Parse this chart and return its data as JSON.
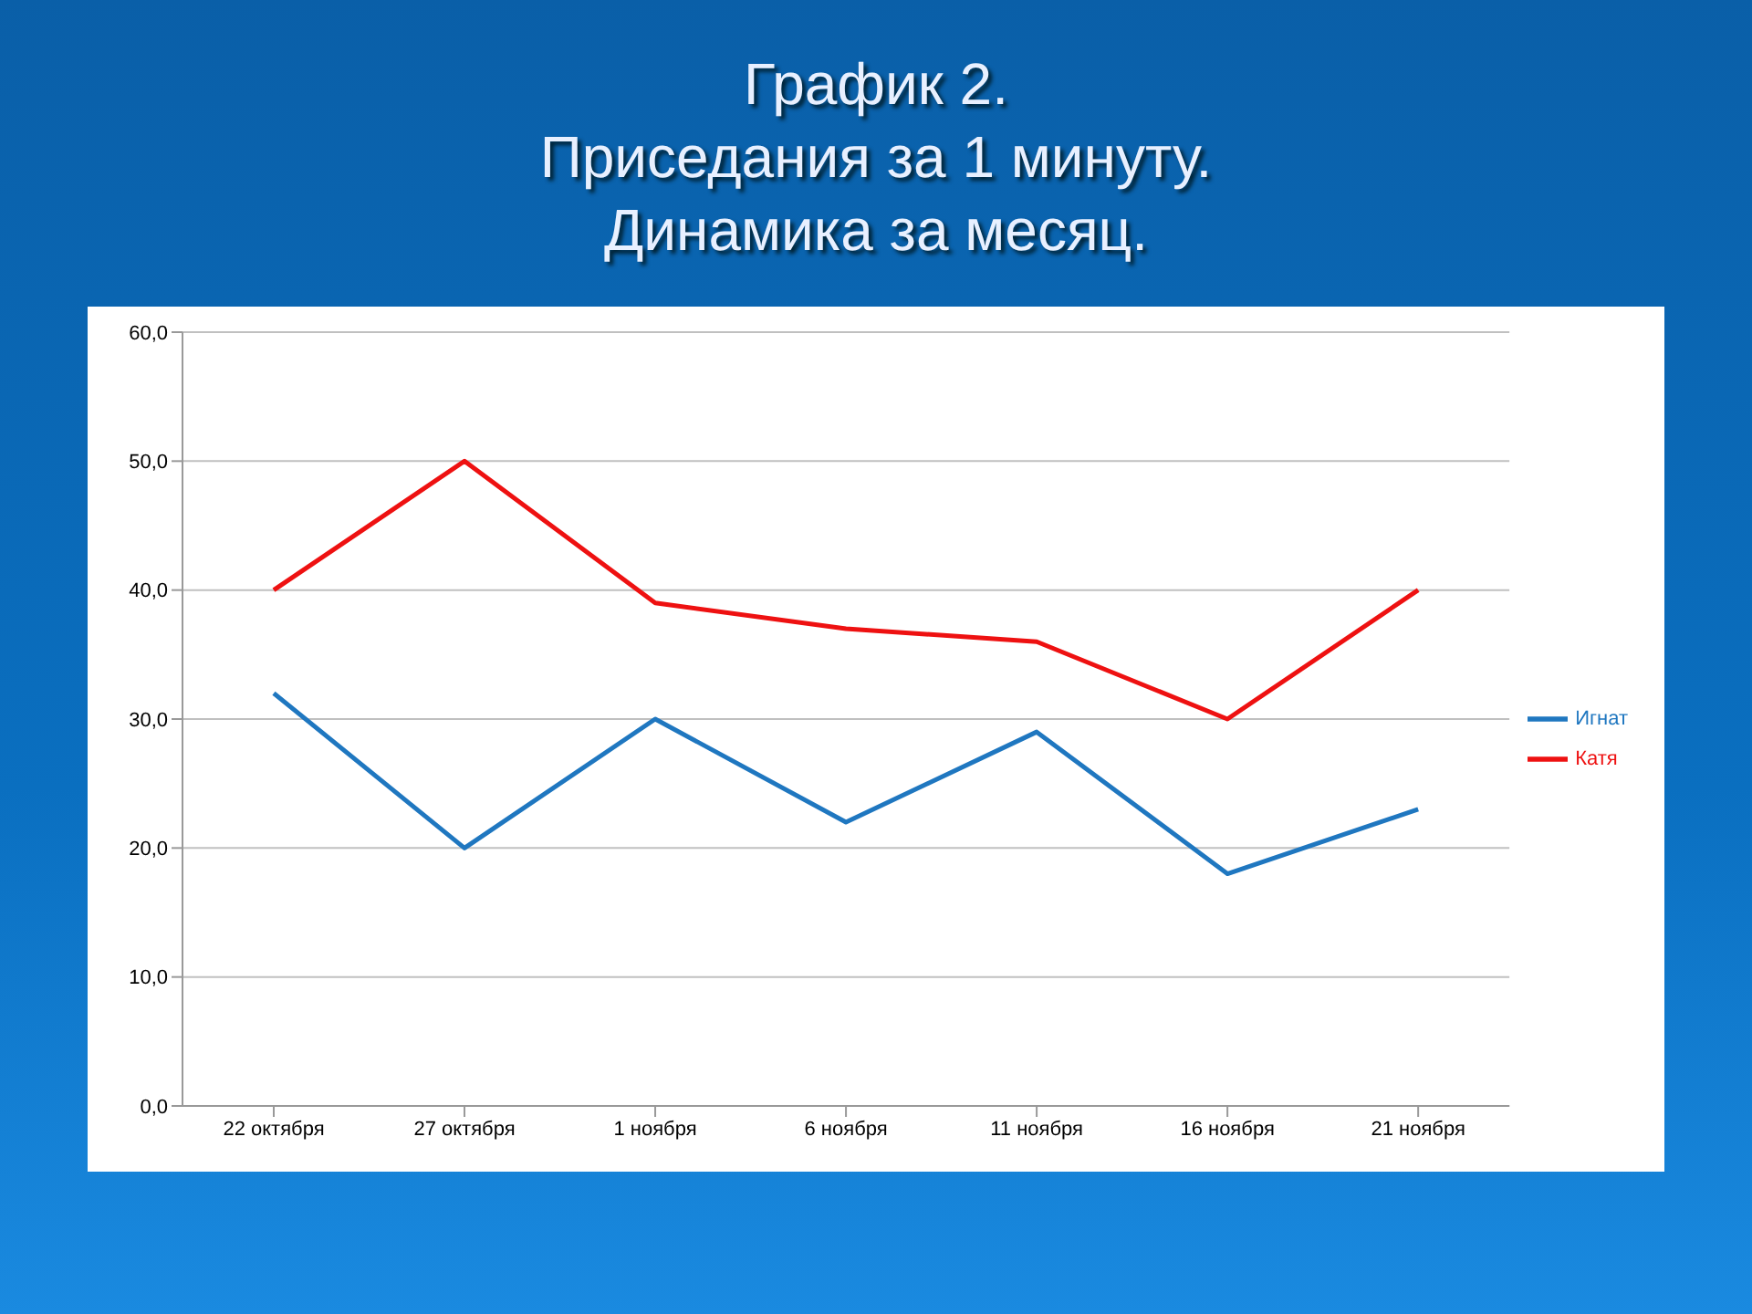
{
  "chart_data": {
    "type": "line",
    "title": "График 2.\nПриседания за 1 минуту.\nДинамика за месяц.",
    "categories": [
      "22 октября",
      "27 октября",
      "1 ноября",
      "6 ноября",
      "11 ноября",
      "16 ноября",
      "21 ноября"
    ],
    "series": [
      {
        "name": "Игнат",
        "color": "#1f77c0",
        "values": [
          32,
          20,
          30,
          22,
          29,
          18,
          23
        ]
      },
      {
        "name": "Катя",
        "color": "#ee1111",
        "values": [
          40,
          50,
          39,
          37,
          36,
          30,
          40
        ]
      }
    ],
    "ylim": [
      0,
      60
    ],
    "yticks": [
      {
        "value": 0,
        "label": "0,0"
      },
      {
        "value": 10,
        "label": "10,0"
      },
      {
        "value": 20,
        "label": "20,0"
      },
      {
        "value": 30,
        "label": "30,0"
      },
      {
        "value": 40,
        "label": "40,0"
      },
      {
        "value": 50,
        "label": "50,0"
      },
      {
        "value": 60,
        "label": "60,0"
      }
    ],
    "grid": "y",
    "legend": "right",
    "marker": "none",
    "line_style": "solid"
  }
}
